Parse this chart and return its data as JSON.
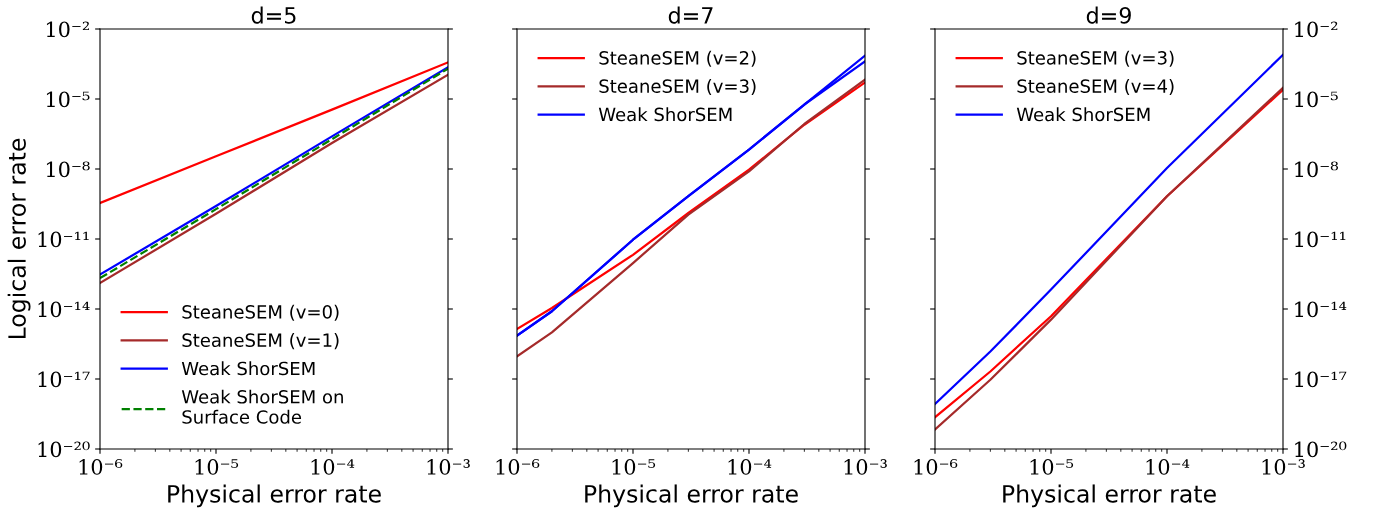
{
  "chart_data": [
    {
      "type": "line",
      "title": "d=5",
      "xlabel": "Physical error rate",
      "ylabel": "Logical error rate",
      "log": "xy",
      "legend": "bottom left",
      "line_style": "solid",
      "marker": "none",
      "grid": false,
      "xlim": [
        1e-06,
        0.001
      ],
      "xticks": [
        {
          "value": 1e-06,
          "label": "10⁻⁶"
        },
        {
          "value": 1e-05,
          "label": "10⁻⁵"
        },
        {
          "value": 0.0001,
          "label": "10⁻⁴"
        },
        {
          "value": 0.001,
          "label": "10⁻³"
        }
      ],
      "ylim": [
        1e-20,
        0.01
      ],
      "yticks": [
        {
          "value": 1e-20,
          "label": "10⁻²⁰"
        },
        {
          "value": 1e-17,
          "label": "10⁻¹⁷"
        },
        {
          "value": 1e-14,
          "label": "10⁻¹⁴"
        },
        {
          "value": 1e-11,
          "label": "10⁻¹¹"
        },
        {
          "value": 1e-08,
          "label": "10⁻⁸"
        },
        {
          "value": 1e-05,
          "label": "10⁻⁵"
        },
        {
          "value": 0.01,
          "label": "10⁻²"
        }
      ],
      "x": [
        1e-06,
        1e-05,
        0.0001,
        0.001
      ],
      "series": [
        {
          "name": "SteaneSEM (v=0)",
          "color": "#ff0000",
          "values": [
            3.5e-10,
            3.5e-08,
            3.5e-06,
            0.00037
          ]
        },
        {
          "name": "SteaneSEM (v=1)",
          "color": "#a52a2a",
          "values": [
            1.3e-13,
            1.2e-10,
            1.3e-07,
            0.00011
          ]
        },
        {
          "name": "Weak ShorSEM",
          "color": "#0000ff",
          "values": [
            3e-13,
            2.6e-10,
            2.5e-07,
            0.00023
          ]
        },
        {
          "name": "Weak ShorSEM on\nSurface Code",
          "color": "#008000",
          "line_style": "dashed",
          "values": [
            2.1e-13,
            1.9e-10,
            1.9e-07,
            0.0002
          ]
        }
      ]
    },
    {
      "type": "line",
      "title": "d=7",
      "xlabel": "Physical error rate",
      "log": "xy",
      "legend": "top left",
      "tick_labels": "x",
      "line_style": "solid",
      "marker": "none",
      "grid": false,
      "xlim": [
        1e-06,
        0.001
      ],
      "xticks": [
        {
          "value": 1e-06,
          "label": "10⁻⁶"
        },
        {
          "value": 1e-05,
          "label": "10⁻⁵"
        },
        {
          "value": 0.0001,
          "label": "10⁻⁴"
        },
        {
          "value": 0.001,
          "label": "10⁻³"
        }
      ],
      "ylim": [
        1e-20,
        0.01
      ],
      "yticks": [
        {
          "value": 1e-20,
          "label": null
        },
        {
          "value": 1e-17,
          "label": null
        },
        {
          "value": 1e-14,
          "label": null
        },
        {
          "value": 1e-11,
          "label": null
        },
        {
          "value": 1e-08,
          "label": null
        },
        {
          "value": 1e-05,
          "label": null
        },
        {
          "value": 0.01,
          "label": null
        }
      ],
      "x": [
        1e-06,
        2e-06,
        1e-05,
        3e-05,
        0.0001,
        0.0003,
        0.001
      ],
      "series": [
        {
          "name": "SteaneSEM (v=2)",
          "color": "#ff0000",
          "values": [
            1.4e-15,
            1.1e-14,
            2.1e-12,
            1.3e-10,
            9.3e-09,
            7.9e-07,
            5.1e-05
          ]
        },
        {
          "name": "SteaneSEM (v=3)",
          "color": "#a52a2a",
          "values": [
            9.3e-17,
            1e-15,
            9.3e-13,
            1.1e-10,
            7.9e-09,
            8.5e-07,
            6.8e-05
          ]
        },
        {
          "name": "Weak ShorSEM",
          "color": "#0000ff",
          "values": [
            7.2e-16,
            8e-15,
            9.3e-12,
            6.8e-10,
            6.8e-08,
            5.8e-06,
            0.00072
          ]
        },
        {
          "color": "#0000ff",
          "values": [
            7.2e-16,
            8e-15,
            9.3e-12,
            6.8e-10,
            6.8e-08,
            5.8e-06,
            0.00041
          ]
        }
      ]
    },
    {
      "type": "line",
      "title": "d=9",
      "xlabel": "Physical error rate",
      "log": "xy",
      "legend": "top left",
      "line_style": "solid",
      "marker": "none",
      "grid": false,
      "xlim": [
        1e-06,
        0.001
      ],
      "xticks": [
        {
          "value": 1e-06,
          "label": "10⁻⁶"
        },
        {
          "value": 1e-05,
          "label": "10⁻⁵"
        },
        {
          "value": 0.0001,
          "label": "10⁻⁴"
        },
        {
          "value": 0.001,
          "label": "10⁻³"
        }
      ],
      "ylim": [
        1e-20,
        0.01
      ],
      "yticks": [
        {
          "value": 1e-20,
          "label": "10⁻²⁰"
        },
        {
          "value": 1e-17,
          "label": "10⁻¹⁷"
        },
        {
          "value": 1e-14,
          "label": "10⁻¹⁴"
        },
        {
          "value": 1e-11,
          "label": "10⁻¹¹"
        },
        {
          "value": 1e-08,
          "label": "10⁻⁸"
        },
        {
          "value": 1e-05,
          "label": "10⁻⁵"
        },
        {
          "value": 0.01,
          "label": "10⁻²"
        }
      ],
      "x": [
        1e-06,
        3e-06,
        1e-05,
        0.0001,
        0.001
      ],
      "series": [
        {
          "name": "SteaneSEM (v=3)",
          "color": "#ff0000",
          "values": [
            2.3e-19,
            2.1e-17,
            4.9e-15,
            6.8e-10,
            2.5e-05
          ]
        },
        {
          "name": "SteaneSEM (v=4)",
          "color": "#a52a2a",
          "values": [
            6.8e-20,
            9.3e-18,
            3.5e-15,
            6.8e-10,
            3e-05
          ]
        },
        {
          "name": "Weak ShorSEM",
          "color": "#0000ff",
          "values": [
            8.5e-19,
            1.5e-16,
            6.8e-14,
            1.1e-08,
            0.00079
          ]
        }
      ]
    }
  ]
}
